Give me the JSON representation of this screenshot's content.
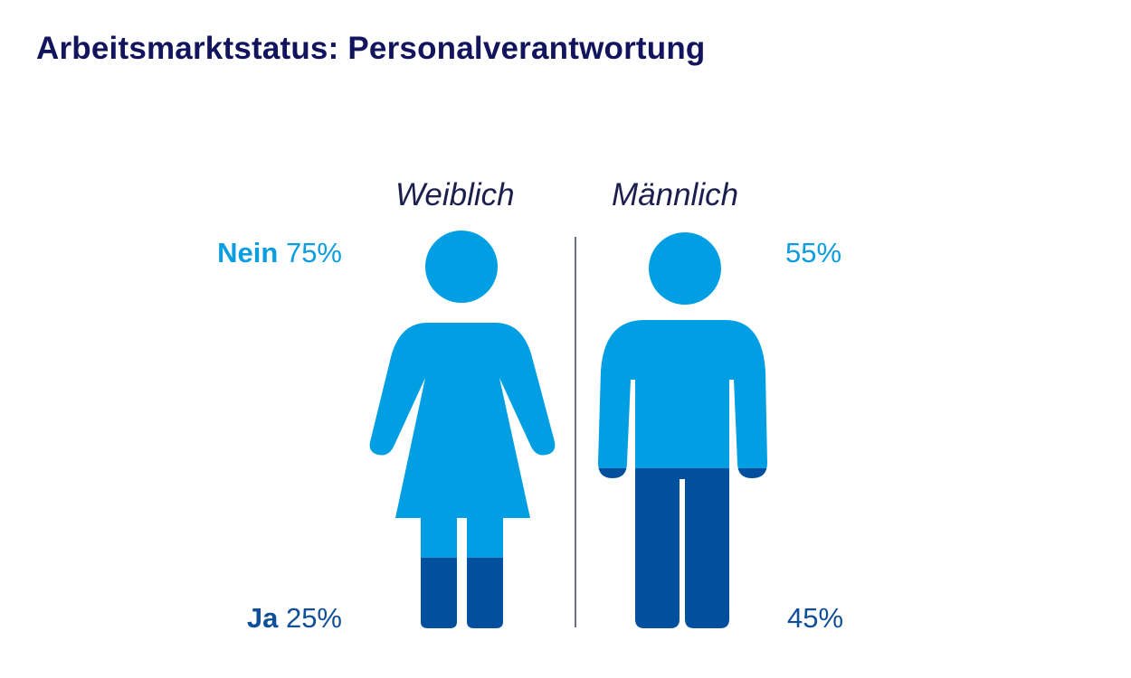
{
  "title": "Arbeitsmarktstatus: Personalverantwortung",
  "chart_data": {
    "type": "pictogram",
    "title": "Arbeitsmarktstatus: Personalverantwortung",
    "categories": [
      "Weiblich",
      "Männlich"
    ],
    "series": [
      {
        "name": "Nein",
        "values": [
          75,
          55
        ]
      },
      {
        "name": "Ja",
        "values": [
          25,
          45
        ]
      }
    ],
    "unit": "%"
  },
  "labels": {
    "female": "Weiblich",
    "male": "Männlich",
    "nein": "Nein",
    "ja": "Ja",
    "f_nein_pct": "75%",
    "f_ja_pct": "25%",
    "m_nein_pct": "55%",
    "m_ja_pct": "45%"
  },
  "colors": {
    "nein": "#009fe3",
    "ja": "#00509e",
    "title": "#13145e",
    "divider": "#3b3f6b"
  }
}
